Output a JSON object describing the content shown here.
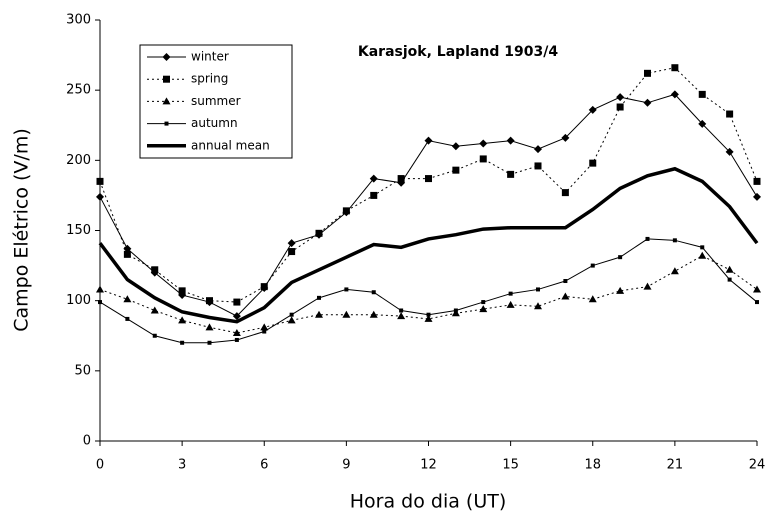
{
  "chart_data": {
    "type": "line",
    "title": "Karasjok, Lapland 1903/4",
    "x_label": "Hora do dia (UT)",
    "y_label": "Campo Elétrico (V/m)",
    "x": [
      0,
      1,
      2,
      3,
      4,
      5,
      6,
      7,
      8,
      9,
      10,
      11,
      12,
      13,
      14,
      15,
      16,
      17,
      18,
      19,
      20,
      21,
      22,
      23,
      24
    ],
    "xlim": [
      0,
      24
    ],
    "xticks": [
      0,
      3,
      6,
      9,
      12,
      15,
      18,
      21,
      24
    ],
    "ylim": [
      0,
      300
    ],
    "yticks": [
      0,
      50,
      100,
      150,
      200,
      250,
      300
    ],
    "grid": false,
    "legend": "upper left",
    "series": [
      {
        "name": "winter",
        "color": "#000000",
        "marker": "diamond",
        "dash": "solid",
        "width": 1,
        "values": [
          174,
          137,
          120,
          104,
          99,
          89,
          109,
          141,
          147,
          163,
          187,
          184,
          214,
          210,
          212,
          214,
          208,
          216,
          236,
          245,
          241,
          247,
          226,
          206,
          174
        ]
      },
      {
        "name": "spring",
        "color": "#000000",
        "marker": "square",
        "dash": "dotted",
        "width": 1,
        "values": [
          185,
          133,
          122,
          107,
          100,
          99,
          110,
          135,
          148,
          164,
          175,
          187,
          187,
          193,
          201,
          190,
          196,
          177,
          198,
          238,
          262,
          266,
          247,
          233,
          185
        ]
      },
      {
        "name": "summer",
        "color": "#000000",
        "marker": "triangle",
        "dash": "dotted",
        "width": 1,
        "values": [
          108,
          101,
          93,
          86,
          81,
          77,
          81,
          86,
          90,
          90,
          90,
          89,
          87,
          91,
          94,
          97,
          96,
          103,
          101,
          107,
          110,
          121,
          132,
          122,
          108
        ]
      },
      {
        "name": "autumn",
        "color": "#000000",
        "marker": "small-square",
        "dash": "solid",
        "width": 1,
        "values": [
          99,
          87,
          75,
          70,
          70,
          72,
          78,
          90,
          102,
          108,
          106,
          93,
          90,
          93,
          99,
          105,
          108,
          114,
          125,
          131,
          144,
          143,
          138,
          115,
          99
        ]
      },
      {
        "name": "annual mean",
        "color": "#000000",
        "marker": "none",
        "dash": "solid",
        "width": 3.5,
        "values": [
          141,
          115,
          102,
          92,
          88,
          85,
          95,
          113,
          122,
          131,
          140,
          138,
          144,
          147,
          151,
          152,
          152,
          152,
          165,
          180,
          189,
          194,
          185,
          167,
          141
        ]
      }
    ]
  }
}
